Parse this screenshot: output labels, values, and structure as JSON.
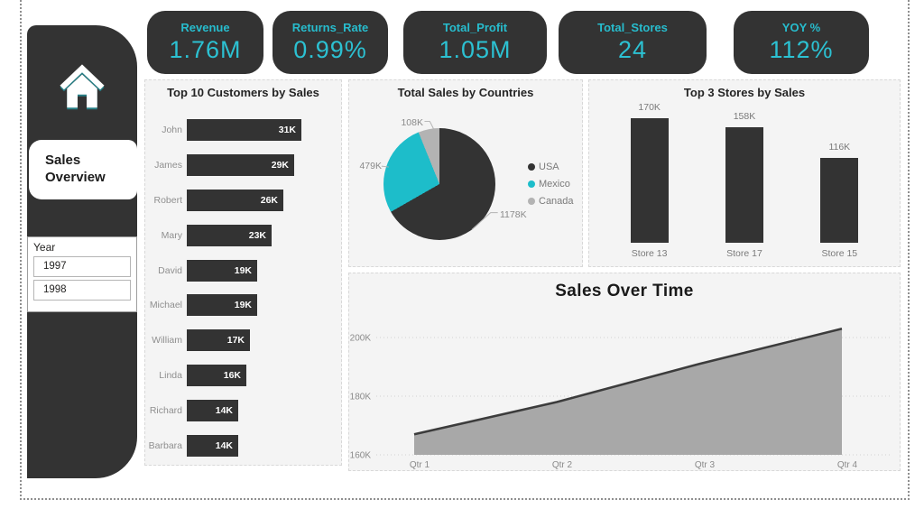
{
  "colors": {
    "dark": "#333333",
    "accent_cyan": "#27bccd",
    "pie_gray": "#b3b3b3",
    "area_fill": "#a8a8a8",
    "area_line": "#3c3c3c",
    "panel_bg": "#f4f4f4",
    "muted_text": "#8a8a8a"
  },
  "kpi_cards": [
    {
      "label": "Revenue",
      "value": "1.76M"
    },
    {
      "label": "Returns_Rate",
      "value": "0.99%"
    },
    {
      "label": "Total_Profit",
      "value": "1.05M"
    },
    {
      "label": "Total_Stores",
      "value": "24"
    },
    {
      "label": "YOY %",
      "value": "112%"
    }
  ],
  "sidebar": {
    "home_icon": "home-icon",
    "nav_label": "Sales Overview",
    "slicer": {
      "title": "Year",
      "options": [
        "1997",
        "1998"
      ]
    }
  },
  "chart_data": [
    {
      "type": "bar",
      "orientation": "horizontal",
      "title": "Top 10 Customers by Sales",
      "categories": [
        "John",
        "James",
        "Robert",
        "Mary",
        "David",
        "Michael",
        "William",
        "Linda",
        "Richard",
        "Barbara"
      ],
      "values": [
        31,
        29,
        26,
        23,
        19,
        19,
        17,
        16,
        14,
        14
      ],
      "value_labels": [
        "31K",
        "29K",
        "26K",
        "23K",
        "19K",
        "19K",
        "17K",
        "16K",
        "14K",
        "14K"
      ],
      "unit": "K",
      "bar_color": "#333333"
    },
    {
      "type": "pie",
      "title": "Total Sales by Countries",
      "segments": [
        {
          "name": "USA",
          "value": 1178,
          "label": "1178K",
          "color": "#333333"
        },
        {
          "name": "Mexico",
          "value": 479,
          "label": "479K",
          "color": "#1dbdca"
        },
        {
          "name": "Canada",
          "value": 108,
          "label": "108K",
          "color": "#b3b3b3"
        }
      ],
      "legend_position": "right"
    },
    {
      "type": "bar",
      "orientation": "vertical",
      "title": "Top 3 Stores by Sales",
      "categories": [
        "Store 13",
        "Store 17",
        "Store 15"
      ],
      "values": [
        170,
        158,
        116
      ],
      "value_labels": [
        "170K",
        "158K",
        "116K"
      ],
      "unit": "K",
      "bar_color": "#333333"
    },
    {
      "type": "area",
      "title": "Sales Over Time",
      "x": [
        "Qtr 1",
        "Qtr 2",
        "Qtr 3",
        "Qtr 4"
      ],
      "values": [
        167,
        178,
        191,
        203
      ],
      "unit": "K",
      "ylim": [
        160,
        210
      ],
      "yticks": [
        {
          "label": "160K",
          "value": 160
        },
        {
          "label": "180K",
          "value": 180
        },
        {
          "label": "200K",
          "value": 200
        }
      ],
      "grid": "dotted",
      "legend_position": "none"
    }
  ]
}
